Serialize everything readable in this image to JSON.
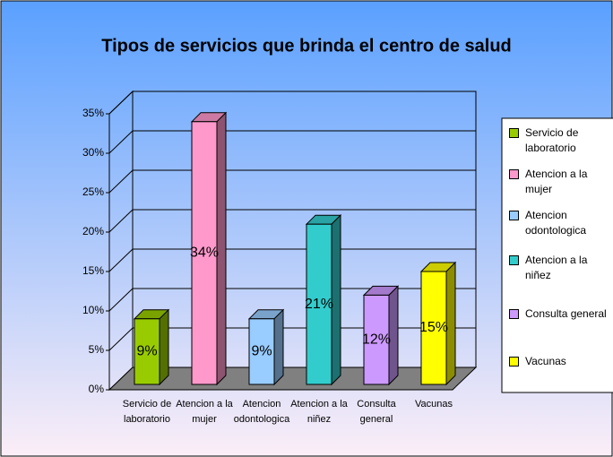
{
  "chart_data": {
    "type": "bar3d",
    "title": "Tipos de servicios que brinda el centro de salud",
    "categories": [
      "Servicio de laboratorio",
      "Atencion a la mujer",
      "Atencion odontologica",
      "Atencion a la niñez",
      "Consulta general",
      "Vacunas"
    ],
    "values": [
      9,
      34,
      9,
      21,
      12,
      15
    ],
    "value_labels": [
      "9%",
      "34%",
      "9%",
      "21%",
      "12%",
      "15%"
    ],
    "colors": [
      "#99cc00",
      "#ff99cc",
      "#99ccff",
      "#33cccc",
      "#cc99ff",
      "#ffff00"
    ],
    "ylim": [
      0,
      35
    ],
    "yticks": [
      {
        "value": 0,
        "label": "0%"
      },
      {
        "value": 5,
        "label": "5%"
      },
      {
        "value": 10,
        "label": "10%"
      },
      {
        "value": 15,
        "label": "15%"
      },
      {
        "value": 20,
        "label": "20%"
      },
      {
        "value": 25,
        "label": "25%"
      },
      {
        "value": 30,
        "label": "30%"
      },
      {
        "value": 35,
        "label": "35%"
      }
    ],
    "grid": true,
    "legend": "right"
  }
}
